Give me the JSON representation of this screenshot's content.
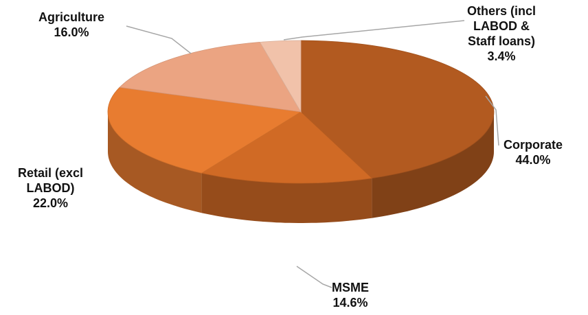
{
  "chart_data": {
    "type": "pie",
    "title": "",
    "slices": [
      {
        "label_lines": [
          "Corporate"
        ],
        "value_text": "44.0%",
        "value": 44.0,
        "color": "#B25A20"
      },
      {
        "label_lines": [
          "MSME"
        ],
        "value_text": "14.6%",
        "value": 14.6,
        "color": "#D06A25"
      },
      {
        "label_lines": [
          "Retail (excl",
          "LABOD)"
        ],
        "value_text": "22.0%",
        "value": 22.0,
        "color": "#E87C30"
      },
      {
        "label_lines": [
          "Agriculture"
        ],
        "value_text": "16.0%",
        "value": 16.0,
        "color": "#EBA482"
      },
      {
        "label_lines": [
          "Others (incl",
          "LABOD &",
          "Staff loans)"
        ],
        "value_text": "3.4%",
        "value": 3.4,
        "color": "#F1C2AA"
      }
    ],
    "start_angle_deg": 0,
    "direction": "clockwise",
    "style": "3d"
  }
}
